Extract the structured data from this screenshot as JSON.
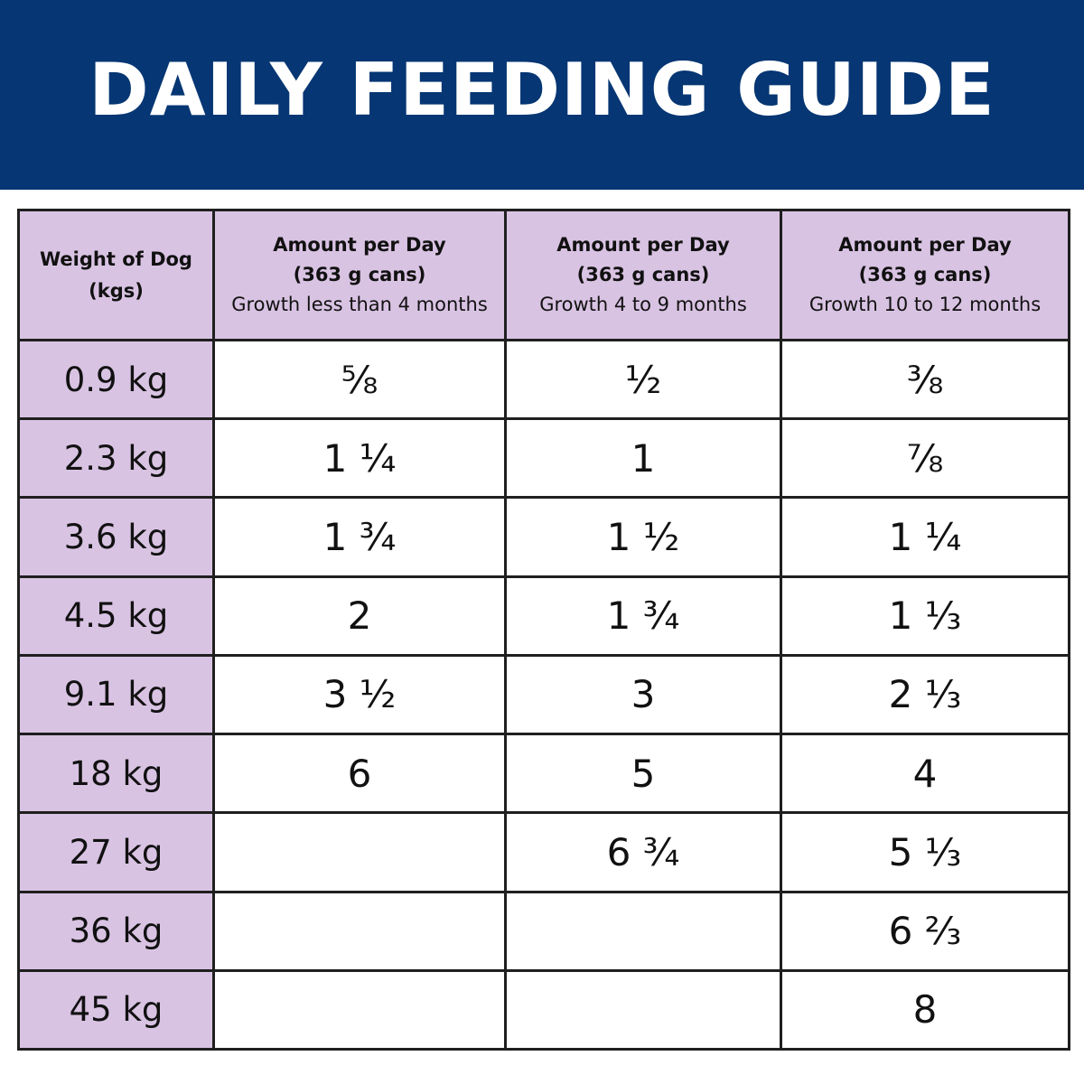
{
  "title": "DAILY FEEDING GUIDE",
  "colors": {
    "banner": "#063673",
    "header_bg": "#d9c3e3",
    "weight_col_bg": "#d9c3e3"
  },
  "table": {
    "headers": [
      {
        "line1": "Weight of Dog",
        "line2": "(kgs)",
        "line3": ""
      },
      {
        "line1": "Amount per Day",
        "line2": "(363 g cans)",
        "line3": "Growth less than 4 months"
      },
      {
        "line1": "Amount per Day",
        "line2": "(363 g cans)",
        "line3": "Growth 4 to 9 months"
      },
      {
        "line1": "Amount per Day",
        "line2": "(363 g cans)",
        "line3": "Growth 10 to 12 months"
      }
    ],
    "rows": [
      {
        "weight": "0.9 kg",
        "c1": "⅝",
        "c2": "½",
        "c3": "⅜"
      },
      {
        "weight": "2.3 kg",
        "c1": "1 ¼",
        "c2": "1",
        "c3": "⅞"
      },
      {
        "weight": "3.6 kg",
        "c1": "1 ¾",
        "c2": "1 ½",
        "c3": "1 ¼"
      },
      {
        "weight": "4.5 kg",
        "c1": "2",
        "c2": "1 ¾",
        "c3": "1 ⅓"
      },
      {
        "weight": "9.1 kg",
        "c1": "3 ½",
        "c2": "3",
        "c3": "2 ⅓"
      },
      {
        "weight": "18 kg",
        "c1": "6",
        "c2": "5",
        "c3": "4"
      },
      {
        "weight": "27 kg",
        "c1": "",
        "c2": "6 ¾",
        "c3": "5 ⅓"
      },
      {
        "weight": "36 kg",
        "c1": "",
        "c2": "",
        "c3": "6 ⅔"
      },
      {
        "weight": "45 kg",
        "c1": "",
        "c2": "",
        "c3": "8"
      }
    ]
  }
}
